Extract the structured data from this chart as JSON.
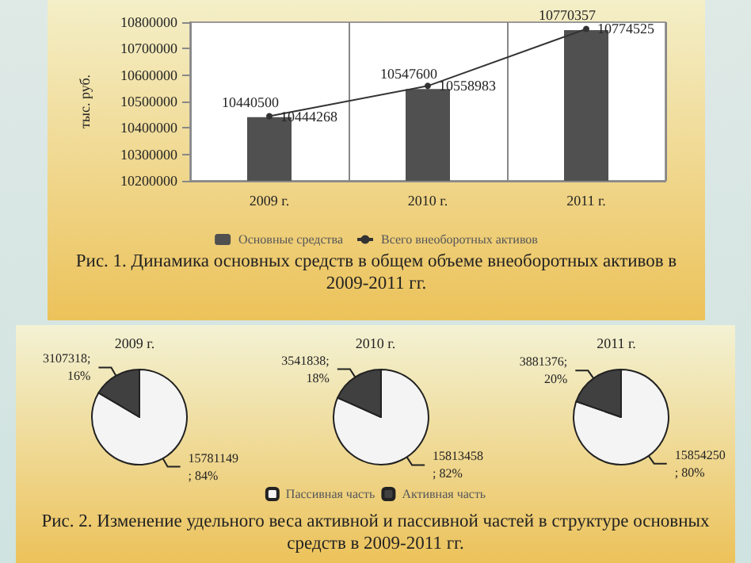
{
  "chart_data": [
    {
      "type": "bar",
      "ylabel": "тыс. руб.",
      "categories": [
        "2009 г.",
        "2010 г.",
        "2011 г."
      ],
      "ylim": [
        10200000,
        10800000
      ],
      "yticks": [
        10200000,
        10300000,
        10400000,
        10500000,
        10600000,
        10700000,
        10800000
      ],
      "grid": "x",
      "legend": "bottom",
      "data_labels": true,
      "series": [
        {
          "name": "Основные средства",
          "type": "bar",
          "color": "#505050",
          "values": [
            10440500,
            10547600,
            10770357
          ]
        },
        {
          "name": "Всего внеоборотных активов",
          "type": "line",
          "color": "#333333",
          "marker": "circle",
          "values": [
            10444268,
            10558983,
            10774525
          ]
        }
      ],
      "annotations": [
        "Рис. 1. Динамика основных средств в общем объеме внеоборотных активов в 2009-2011 гг."
      ]
    },
    {
      "type": "pie",
      "title": "2009 г.",
      "values": [
        15781149,
        3107318
      ],
      "colors": [
        "#f4f4f4",
        "#404040"
      ],
      "value_labels": [
        "15781149 ; 84%",
        "3107318; 16%"
      ],
      "legend": false
    },
    {
      "type": "pie",
      "title": "2010 г.",
      "categories": [
        "Пассивная часть",
        "Активная часть"
      ],
      "values": [
        15813458,
        3541838
      ],
      "colors": [
        "#f4f4f4",
        "#404040"
      ],
      "value_labels": [
        "15813458 ; 82%",
        "3541838; 18%"
      ],
      "legend": "bottom",
      "annotations": [
        "Рис. 2. Изменение удельного веса активной и пассивной частей в структуре основных средств в 2009-2011 гг."
      ]
    },
    {
      "type": "pie",
      "title": "2011 г.",
      "values": [
        15854250,
        3881376
      ],
      "colors": [
        "#f4f4f4",
        "#404040"
      ],
      "value_labels": [
        "15854250 ; 80%",
        "3881376; 20%"
      ],
      "legend": false
    }
  ]
}
